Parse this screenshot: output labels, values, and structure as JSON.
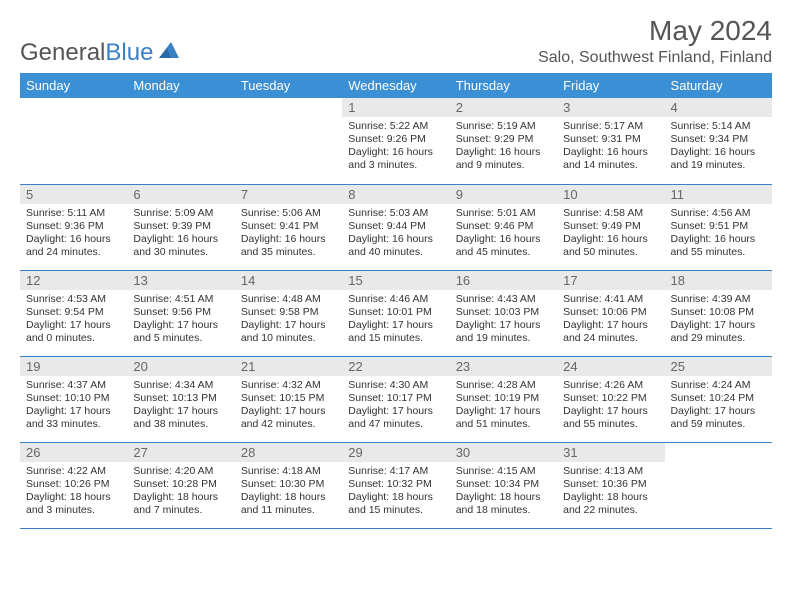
{
  "logo": {
    "text1": "General",
    "text2": "Blue"
  },
  "title": "May 2024",
  "location": "Salo, Southwest Finland, Finland",
  "colors": {
    "header_bg": "#3b8fd4",
    "header_text": "#ffffff",
    "daynum_bg": "#e9e9e9",
    "daynum_text": "#666666",
    "border": "#3b7fc4",
    "logo_gray": "#555555",
    "logo_blue": "#3b7fc4"
  },
  "days": [
    "Sunday",
    "Monday",
    "Tuesday",
    "Wednesday",
    "Thursday",
    "Friday",
    "Saturday"
  ],
  "weeks": [
    [
      {
        "n": "",
        "sr": "",
        "ss": "",
        "dl": ""
      },
      {
        "n": "",
        "sr": "",
        "ss": "",
        "dl": ""
      },
      {
        "n": "",
        "sr": "",
        "ss": "",
        "dl": ""
      },
      {
        "n": "1",
        "sr": "Sunrise: 5:22 AM",
        "ss": "Sunset: 9:26 PM",
        "dl": "Daylight: 16 hours and 3 minutes."
      },
      {
        "n": "2",
        "sr": "Sunrise: 5:19 AM",
        "ss": "Sunset: 9:29 PM",
        "dl": "Daylight: 16 hours and 9 minutes."
      },
      {
        "n": "3",
        "sr": "Sunrise: 5:17 AM",
        "ss": "Sunset: 9:31 PM",
        "dl": "Daylight: 16 hours and 14 minutes."
      },
      {
        "n": "4",
        "sr": "Sunrise: 5:14 AM",
        "ss": "Sunset: 9:34 PM",
        "dl": "Daylight: 16 hours and 19 minutes."
      }
    ],
    [
      {
        "n": "5",
        "sr": "Sunrise: 5:11 AM",
        "ss": "Sunset: 9:36 PM",
        "dl": "Daylight: 16 hours and 24 minutes."
      },
      {
        "n": "6",
        "sr": "Sunrise: 5:09 AM",
        "ss": "Sunset: 9:39 PM",
        "dl": "Daylight: 16 hours and 30 minutes."
      },
      {
        "n": "7",
        "sr": "Sunrise: 5:06 AM",
        "ss": "Sunset: 9:41 PM",
        "dl": "Daylight: 16 hours and 35 minutes."
      },
      {
        "n": "8",
        "sr": "Sunrise: 5:03 AM",
        "ss": "Sunset: 9:44 PM",
        "dl": "Daylight: 16 hours and 40 minutes."
      },
      {
        "n": "9",
        "sr": "Sunrise: 5:01 AM",
        "ss": "Sunset: 9:46 PM",
        "dl": "Daylight: 16 hours and 45 minutes."
      },
      {
        "n": "10",
        "sr": "Sunrise: 4:58 AM",
        "ss": "Sunset: 9:49 PM",
        "dl": "Daylight: 16 hours and 50 minutes."
      },
      {
        "n": "11",
        "sr": "Sunrise: 4:56 AM",
        "ss": "Sunset: 9:51 PM",
        "dl": "Daylight: 16 hours and 55 minutes."
      }
    ],
    [
      {
        "n": "12",
        "sr": "Sunrise: 4:53 AM",
        "ss": "Sunset: 9:54 PM",
        "dl": "Daylight: 17 hours and 0 minutes."
      },
      {
        "n": "13",
        "sr": "Sunrise: 4:51 AM",
        "ss": "Sunset: 9:56 PM",
        "dl": "Daylight: 17 hours and 5 minutes."
      },
      {
        "n": "14",
        "sr": "Sunrise: 4:48 AM",
        "ss": "Sunset: 9:58 PM",
        "dl": "Daylight: 17 hours and 10 minutes."
      },
      {
        "n": "15",
        "sr": "Sunrise: 4:46 AM",
        "ss": "Sunset: 10:01 PM",
        "dl": "Daylight: 17 hours and 15 minutes."
      },
      {
        "n": "16",
        "sr": "Sunrise: 4:43 AM",
        "ss": "Sunset: 10:03 PM",
        "dl": "Daylight: 17 hours and 19 minutes."
      },
      {
        "n": "17",
        "sr": "Sunrise: 4:41 AM",
        "ss": "Sunset: 10:06 PM",
        "dl": "Daylight: 17 hours and 24 minutes."
      },
      {
        "n": "18",
        "sr": "Sunrise: 4:39 AM",
        "ss": "Sunset: 10:08 PM",
        "dl": "Daylight: 17 hours and 29 minutes."
      }
    ],
    [
      {
        "n": "19",
        "sr": "Sunrise: 4:37 AM",
        "ss": "Sunset: 10:10 PM",
        "dl": "Daylight: 17 hours and 33 minutes."
      },
      {
        "n": "20",
        "sr": "Sunrise: 4:34 AM",
        "ss": "Sunset: 10:13 PM",
        "dl": "Daylight: 17 hours and 38 minutes."
      },
      {
        "n": "21",
        "sr": "Sunrise: 4:32 AM",
        "ss": "Sunset: 10:15 PM",
        "dl": "Daylight: 17 hours and 42 minutes."
      },
      {
        "n": "22",
        "sr": "Sunrise: 4:30 AM",
        "ss": "Sunset: 10:17 PM",
        "dl": "Daylight: 17 hours and 47 minutes."
      },
      {
        "n": "23",
        "sr": "Sunrise: 4:28 AM",
        "ss": "Sunset: 10:19 PM",
        "dl": "Daylight: 17 hours and 51 minutes."
      },
      {
        "n": "24",
        "sr": "Sunrise: 4:26 AM",
        "ss": "Sunset: 10:22 PM",
        "dl": "Daylight: 17 hours and 55 minutes."
      },
      {
        "n": "25",
        "sr": "Sunrise: 4:24 AM",
        "ss": "Sunset: 10:24 PM",
        "dl": "Daylight: 17 hours and 59 minutes."
      }
    ],
    [
      {
        "n": "26",
        "sr": "Sunrise: 4:22 AM",
        "ss": "Sunset: 10:26 PM",
        "dl": "Daylight: 18 hours and 3 minutes."
      },
      {
        "n": "27",
        "sr": "Sunrise: 4:20 AM",
        "ss": "Sunset: 10:28 PM",
        "dl": "Daylight: 18 hours and 7 minutes."
      },
      {
        "n": "28",
        "sr": "Sunrise: 4:18 AM",
        "ss": "Sunset: 10:30 PM",
        "dl": "Daylight: 18 hours and 11 minutes."
      },
      {
        "n": "29",
        "sr": "Sunrise: 4:17 AM",
        "ss": "Sunset: 10:32 PM",
        "dl": "Daylight: 18 hours and 15 minutes."
      },
      {
        "n": "30",
        "sr": "Sunrise: 4:15 AM",
        "ss": "Sunset: 10:34 PM",
        "dl": "Daylight: 18 hours and 18 minutes."
      },
      {
        "n": "31",
        "sr": "Sunrise: 4:13 AM",
        "ss": "Sunset: 10:36 PM",
        "dl": "Daylight: 18 hours and 22 minutes."
      },
      {
        "n": "",
        "sr": "",
        "ss": "",
        "dl": ""
      }
    ]
  ]
}
